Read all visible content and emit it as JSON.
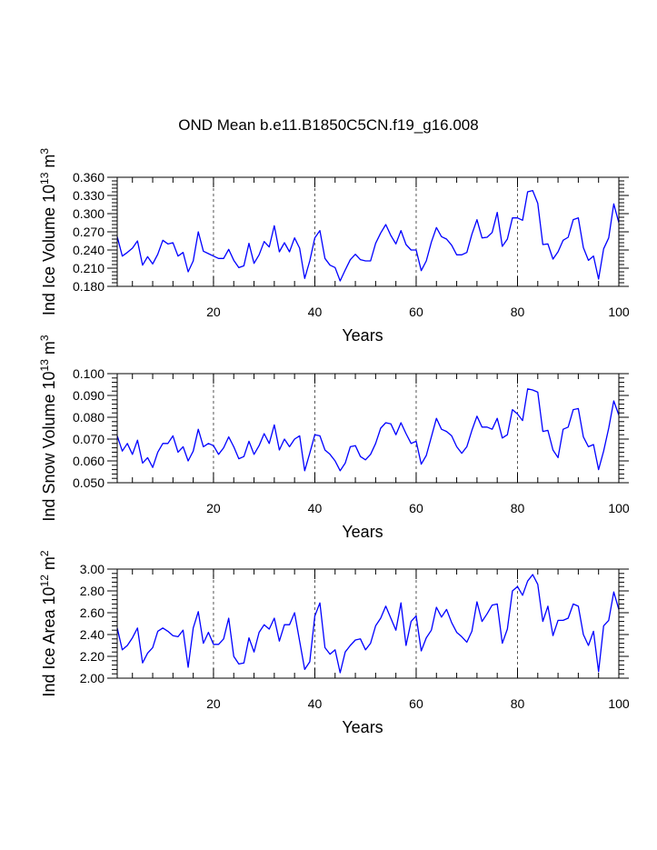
{
  "title": "OND Mean b.e11.B1850C5CN.f19_g16.008",
  "chart_data": [
    {
      "type": "line",
      "ylabel": {
        "prefix": "Ind Ice Volume 10",
        "sup": "13",
        "unit": " m",
        "unit_sup": "3"
      },
      "xlabel": "Years",
      "xlim": [
        1,
        100
      ],
      "ylim": [
        0.18,
        0.36
      ],
      "yticks": [
        "0.180",
        "0.210",
        "0.240",
        "0.270",
        "0.300",
        "0.330",
        "0.360"
      ],
      "xticks": [
        "20",
        "40",
        "60",
        "80",
        "100"
      ],
      "grid_x": [
        20,
        40,
        60,
        80
      ],
      "line_color": "#0000ff",
      "series": [
        {
          "name": "Ind Ice Volume",
          "values": [
            0.262,
            0.23,
            0.236,
            0.243,
            0.255,
            0.215,
            0.229,
            0.217,
            0.233,
            0.256,
            0.25,
            0.252,
            0.23,
            0.236,
            0.204,
            0.222,
            0.27,
            0.238,
            0.234,
            0.23,
            0.226,
            0.226,
            0.241,
            0.223,
            0.211,
            0.214,
            0.251,
            0.218,
            0.232,
            0.254,
            0.245,
            0.28,
            0.237,
            0.252,
            0.237,
            0.26,
            0.243,
            0.193,
            0.222,
            0.26,
            0.272,
            0.226,
            0.215,
            0.211,
            0.189,
            0.207,
            0.224,
            0.233,
            0.224,
            0.222,
            0.222,
            0.251,
            0.268,
            0.282,
            0.264,
            0.25,
            0.272,
            0.249,
            0.24,
            0.24,
            0.206,
            0.222,
            0.253,
            0.277,
            0.262,
            0.258,
            0.248,
            0.232,
            0.232,
            0.236,
            0.266,
            0.29,
            0.26,
            0.261,
            0.269,
            0.302,
            0.246,
            0.258,
            0.293,
            0.293,
            0.289,
            0.336,
            0.338,
            0.317,
            0.249,
            0.25,
            0.225,
            0.237,
            0.256,
            0.261,
            0.29,
            0.293,
            0.244,
            0.223,
            0.23,
            0.192,
            0.242,
            0.26,
            0.316,
            0.285
          ]
        }
      ]
    },
    {
      "type": "line",
      "ylabel": {
        "prefix": "Ind Snow Volume 10",
        "sup": "13",
        "unit": " m",
        "unit_sup": "3"
      },
      "xlabel": "Years",
      "xlim": [
        1,
        100
      ],
      "ylim": [
        0.05,
        0.1
      ],
      "yticks": [
        "0.050",
        "0.060",
        "0.070",
        "0.080",
        "0.090",
        "0.100"
      ],
      "xticks": [
        "20",
        "40",
        "60",
        "80",
        "100"
      ],
      "grid_x": [
        20,
        40,
        60,
        80
      ],
      "line_color": "#0000ff",
      "series": [
        {
          "name": "Ind Snow Volume",
          "values": [
            0.0715,
            0.0645,
            0.068,
            0.063,
            0.0695,
            0.059,
            0.0615,
            0.057,
            0.064,
            0.068,
            0.068,
            0.0715,
            0.064,
            0.0665,
            0.06,
            0.0645,
            0.0745,
            0.0665,
            0.068,
            0.067,
            0.063,
            0.066,
            0.071,
            0.0665,
            0.061,
            0.062,
            0.069,
            0.063,
            0.067,
            0.0725,
            0.068,
            0.0765,
            0.065,
            0.07,
            0.0665,
            0.07,
            0.0715,
            0.0555,
            0.0635,
            0.072,
            0.0715,
            0.065,
            0.063,
            0.06,
            0.0555,
            0.059,
            0.0665,
            0.067,
            0.062,
            0.0605,
            0.063,
            0.068,
            0.075,
            0.0775,
            0.077,
            0.072,
            0.0775,
            0.0725,
            0.068,
            0.069,
            0.0585,
            0.0625,
            0.071,
            0.0795,
            0.0745,
            0.0735,
            0.0715,
            0.0665,
            0.0635,
            0.0665,
            0.074,
            0.0805,
            0.0755,
            0.0755,
            0.0745,
            0.0795,
            0.0705,
            0.072,
            0.0835,
            0.0815,
            0.0785,
            0.093,
            0.0925,
            0.0915,
            0.0735,
            0.074,
            0.065,
            0.0615,
            0.0745,
            0.0755,
            0.0835,
            0.084,
            0.071,
            0.0665,
            0.0675,
            0.056,
            0.0645,
            0.075,
            0.0875,
            0.081
          ]
        }
      ]
    },
    {
      "type": "line",
      "ylabel": {
        "prefix": "Ind Ice Area 10",
        "sup": "12",
        "unit": " m",
        "unit_sup": "2"
      },
      "xlabel": "Years",
      "xlim": [
        1,
        100
      ],
      "ylim": [
        2.0,
        3.0
      ],
      "yticks": [
        "2.00",
        "2.20",
        "2.40",
        "2.60",
        "2.80",
        "3.00"
      ],
      "xticks": [
        "20",
        "40",
        "60",
        "80",
        "100"
      ],
      "grid_x": [
        20,
        40,
        60,
        80
      ],
      "line_color": "#0000ff",
      "series": [
        {
          "name": "Ind Ice Area",
          "values": [
            2.46,
            2.26,
            2.3,
            2.37,
            2.46,
            2.14,
            2.23,
            2.28,
            2.43,
            2.46,
            2.43,
            2.39,
            2.38,
            2.44,
            2.1,
            2.46,
            2.61,
            2.32,
            2.42,
            2.31,
            2.31,
            2.36,
            2.55,
            2.2,
            2.13,
            2.14,
            2.37,
            2.24,
            2.42,
            2.49,
            2.45,
            2.55,
            2.34,
            2.49,
            2.49,
            2.6,
            2.34,
            2.08,
            2.15,
            2.57,
            2.69,
            2.28,
            2.22,
            2.26,
            2.05,
            2.24,
            2.3,
            2.35,
            2.36,
            2.26,
            2.32,
            2.48,
            2.55,
            2.66,
            2.55,
            2.44,
            2.69,
            2.3,
            2.52,
            2.57,
            2.25,
            2.37,
            2.44,
            2.65,
            2.56,
            2.63,
            2.51,
            2.42,
            2.38,
            2.33,
            2.43,
            2.7,
            2.52,
            2.59,
            2.67,
            2.68,
            2.32,
            2.45,
            2.8,
            2.84,
            2.76,
            2.89,
            2.95,
            2.86,
            2.52,
            2.66,
            2.39,
            2.53,
            2.53,
            2.55,
            2.68,
            2.66,
            2.4,
            2.3,
            2.43,
            2.06,
            2.48,
            2.53,
            2.79,
            2.63
          ]
        }
      ]
    }
  ]
}
